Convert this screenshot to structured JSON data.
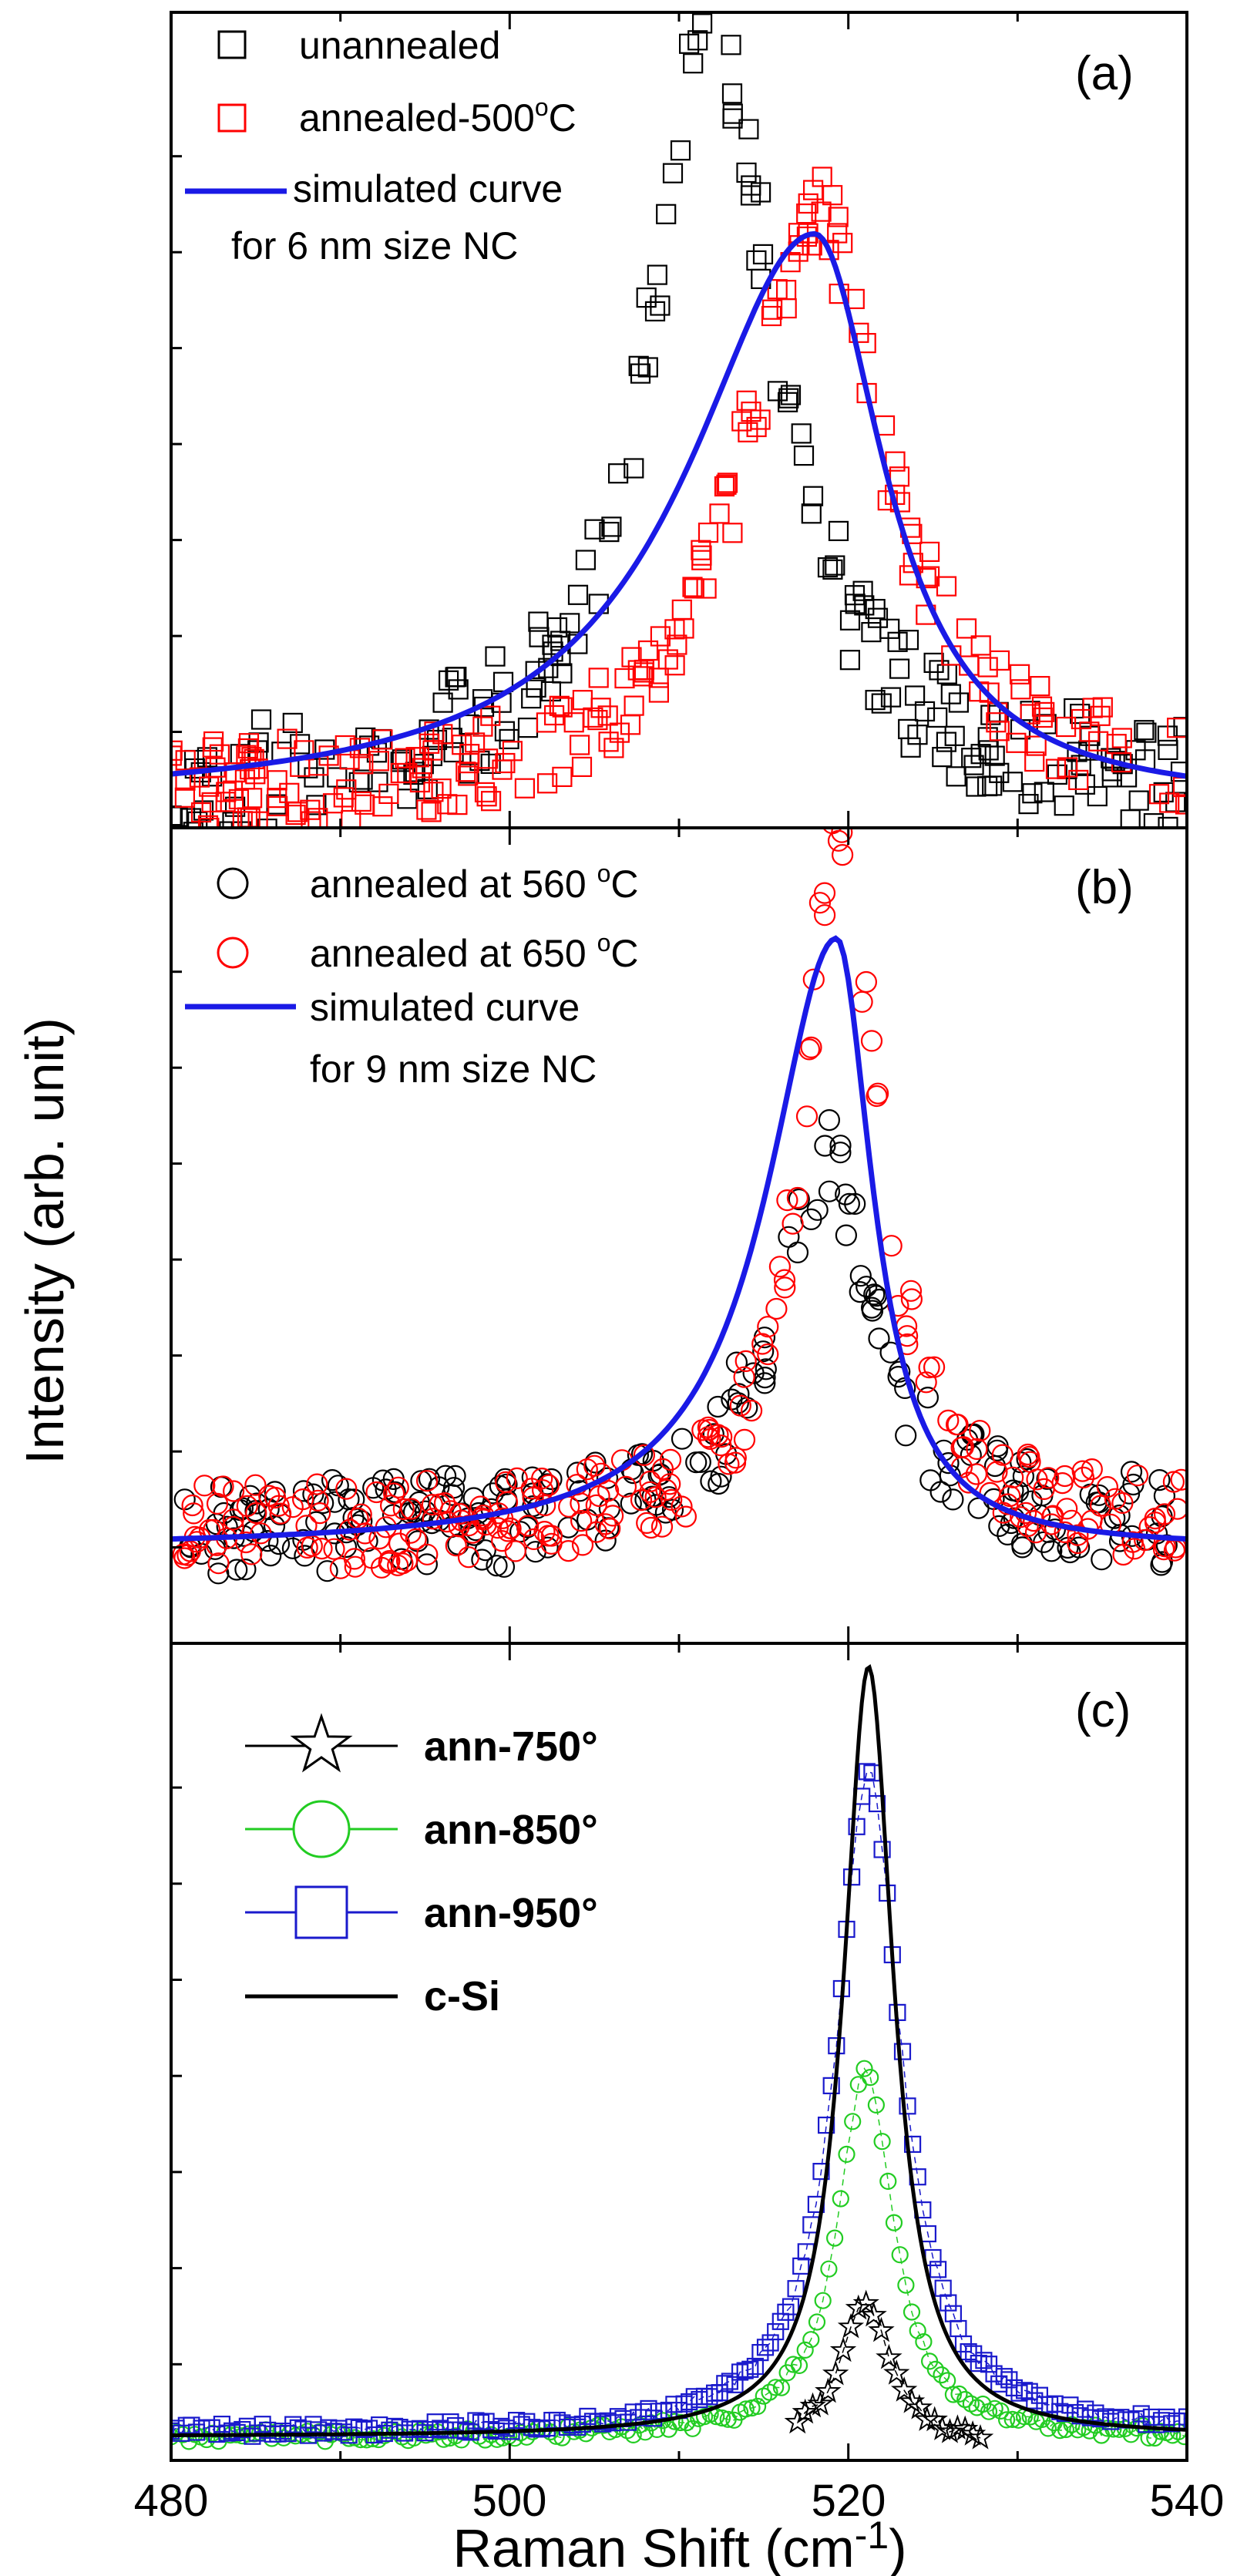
{
  "figure": {
    "ylabel": "Intensity (arb. unit)",
    "xlabel": "Raman Shift (cm",
    "xlabel_sup": "-1",
    "xlabel_close": ")",
    "x_ticks": [
      "480",
      "500",
      "520",
      "540"
    ]
  },
  "chart_data": [
    {
      "type": "scatter",
      "panel_label": "(a)",
      "xlim": [
        480,
        540
      ],
      "ylim": [
        0,
        1
      ],
      "grid": false,
      "legend_position": "top-left",
      "legend": {
        "unannealed": "unannealed",
        "annealed_prefix": "annealed-500",
        "annealed_deg": "o",
        "annealed_unit": "C",
        "sim_line1": "simulated curve",
        "sim_line2": "for  6 nm size NC"
      },
      "series": [
        {
          "name": "unannealed",
          "marker": "square",
          "color": "#000000",
          "model": {
            "center": 512.0,
            "hwhm": 4.6,
            "peak": 0.97,
            "base": 0.03,
            "noise": 0.07,
            "points": 210,
            "seed": 11
          }
        },
        {
          "name": "annealed-500C",
          "marker": "square",
          "color": "#ff0000",
          "model": {
            "center": 518.0,
            "hwhm": 5.0,
            "peak": 0.74,
            "base": 0.03,
            "noise": 0.055,
            "points": 230,
            "seed": 23
          }
        },
        {
          "name": "simulated curve for 6 nm size NC",
          "marker": "line",
          "color": "#1a1ae6",
          "model": {
            "center": 518.0,
            "hwhm": 5.0,
            "peak": 0.72,
            "base": 0.02,
            "skew": 0.8
          }
        }
      ]
    },
    {
      "type": "scatter",
      "panel_label": "(b)",
      "xlim": [
        480,
        540
      ],
      "ylim": [
        0,
        1
      ],
      "grid": false,
      "legend_position": "top-left",
      "legend": {
        "s560_prefix": "annealed at 560 ",
        "s560_deg": "o",
        "s560_unit": "C",
        "s650_prefix": "annealed at 650 ",
        "s650_deg": "o",
        "s650_unit": "C",
        "sim_line1": "simulated curve",
        "sim_line2": "for  9 nm size NC"
      },
      "series": [
        {
          "name": "annealed at 560 C",
          "marker": "circle",
          "color": "#000000",
          "model": {
            "center": 518.5,
            "hwhm": 3.6,
            "peak": 0.47,
            "base": 0.13,
            "noise": 0.06,
            "points": 230,
            "seed": 37
          }
        },
        {
          "name": "annealed at 650 C",
          "marker": "circle",
          "color": "#ff0000",
          "model": {
            "center": 519.5,
            "hwhm": 2.7,
            "peak": 0.88,
            "base": 0.13,
            "noise": 0.055,
            "points": 260,
            "seed": 41
          }
        },
        {
          "name": "simulated curve for 9 nm size NC",
          "marker": "line",
          "color": "#1a1ae6",
          "model": {
            "center": 519.3,
            "hwhm": 2.6,
            "peak": 0.77,
            "base": 0.11,
            "skew": 0.9
          }
        }
      ]
    },
    {
      "type": "line",
      "panel_label": "(c)",
      "xlim": [
        480,
        540
      ],
      "ylim": [
        0,
        1
      ],
      "grid": false,
      "legend_position": "top-left",
      "legend": {
        "ann750": "ann-750°",
        "ann850": "ann-850°",
        "ann950": "ann-950°",
        "csi": "c-Si"
      },
      "series": [
        {
          "name": "ann-750°",
          "marker": "star",
          "color": "#000000",
          "model": {
            "center": 521.0,
            "hwhm": 1.7,
            "peak": 0.18,
            "base": 0.012,
            "noise": 0.006,
            "xmin": 517.0,
            "xmax": 528.0,
            "step": 0.45
          }
        },
        {
          "name": "ann-850°",
          "marker": "circle",
          "color": "#22cc22",
          "model": {
            "center": 521.0,
            "hwhm": 2.0,
            "peak": 0.46,
            "base": 0.02,
            "noise": 0.008,
            "xmin": 480.0,
            "xmax": 540.0,
            "step": 0.35
          }
        },
        {
          "name": "ann-950°",
          "marker": "square",
          "color": "#1a1acc",
          "model": {
            "center": 521.2,
            "hwhm": 2.3,
            "peak": 0.83,
            "base": 0.025,
            "noise": 0.008,
            "xmin": 480.0,
            "xmax": 540.0,
            "step": 0.3
          }
        },
        {
          "name": "c-Si",
          "marker": "line",
          "color": "#000000",
          "model": {
            "center": 521.2,
            "hwhm": 1.8,
            "peak": 0.97,
            "base": 0.02,
            "xmin": 480.0,
            "xmax": 540.0,
            "step": 0.15
          }
        }
      ]
    }
  ]
}
